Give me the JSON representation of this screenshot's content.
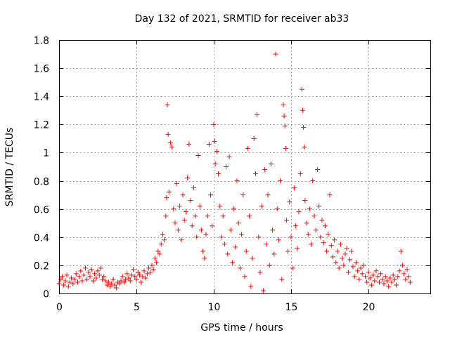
{
  "chart_data": {
    "type": "scatter",
    "title": "Day 132 of 2021, SRMTID for receiver ab33",
    "xlabel": "GPS time / hours",
    "ylabel": "SRMTID / TECUs",
    "xlim": [
      0,
      24
    ],
    "ylim": [
      0,
      1.8
    ],
    "xticks": [
      0,
      5,
      10,
      15,
      20
    ],
    "xtick_labels": [
      "0",
      "5",
      "10",
      "15",
      "20"
    ],
    "yticks": [
      0,
      0.2,
      0.4,
      0.6,
      0.8,
      1,
      1.2,
      1.4,
      1.6,
      1.8
    ],
    "ytick_labels": [
      "0",
      "0.2",
      "0.4",
      "0.6",
      "0.8",
      "1",
      "1.2",
      "1.4",
      "1.6",
      "1.8"
    ],
    "grid": true,
    "marker": "+",
    "series": [
      {
        "name": "ab33",
        "color": "#ff0000",
        "points": [
          [
            0.0,
            0.07
          ],
          [
            0.1,
            0.1
          ],
          [
            0.2,
            0.12
          ],
          [
            0.3,
            0.06
          ],
          [
            0.4,
            0.09
          ],
          [
            0.5,
            0.13
          ],
          [
            0.6,
            0.05
          ],
          [
            0.7,
            0.08
          ],
          [
            0.8,
            0.11
          ],
          [
            0.9,
            0.07
          ],
          [
            1.0,
            0.1
          ],
          [
            1.1,
            0.14
          ],
          [
            1.2,
            0.08
          ],
          [
            1.3,
            0.12
          ],
          [
            1.4,
            0.16
          ],
          [
            1.5,
            0.09
          ],
          [
            1.6,
            0.13
          ],
          [
            1.7,
            0.18
          ],
          [
            1.8,
            0.1
          ],
          [
            1.9,
            0.15
          ],
          [
            2.0,
            0.12
          ],
          [
            2.1,
            0.17
          ],
          [
            2.2,
            0.09
          ],
          [
            2.3,
            0.14
          ],
          [
            2.4,
            0.11
          ],
          [
            2.5,
            0.16
          ],
          [
            2.6,
            0.13
          ],
          [
            2.7,
            0.18
          ],
          [
            2.8,
            0.1
          ],
          [
            2.9,
            0.12
          ],
          [
            3.0,
            0.09
          ],
          [
            3.1,
            0.06
          ],
          [
            3.2,
            0.08
          ],
          [
            3.3,
            0.05
          ],
          [
            3.4,
            0.07
          ],
          [
            3.5,
            0.1
          ],
          [
            3.6,
            0.06
          ],
          [
            3.7,
            0.04
          ],
          [
            3.8,
            0.08
          ],
          [
            3.9,
            0.07
          ],
          [
            4.0,
            0.09
          ],
          [
            4.1,
            0.12
          ],
          [
            4.2,
            0.08
          ],
          [
            4.3,
            0.1
          ],
          [
            4.4,
            0.14
          ],
          [
            4.5,
            0.11
          ],
          [
            4.6,
            0.09
          ],
          [
            4.7,
            0.13
          ],
          [
            4.8,
            0.17
          ],
          [
            4.9,
            0.12
          ],
          [
            5.0,
            0.1
          ],
          [
            5.1,
            0.15
          ],
          [
            5.2,
            0.13
          ],
          [
            5.3,
            0.08
          ],
          [
            5.4,
            0.12
          ],
          [
            5.5,
            0.16
          ],
          [
            5.6,
            0.11
          ],
          [
            5.7,
            0.14
          ],
          [
            5.8,
            0.18
          ],
          [
            5.9,
            0.15
          ],
          [
            6.0,
            0.2
          ],
          [
            6.1,
            0.17
          ],
          [
            6.2,
            0.25
          ],
          [
            6.3,
            0.22
          ],
          [
            6.4,
            0.3
          ],
          [
            6.5,
            0.28
          ],
          [
            6.6,
            0.35
          ],
          [
            6.7,
            0.42
          ],
          [
            6.8,
            0.38
          ],
          [
            6.9,
            0.55
          ],
          [
            6.95,
            0.68
          ],
          [
            7.0,
            1.34
          ],
          [
            7.05,
            1.13
          ],
          [
            7.1,
            0.72
          ],
          [
            7.2,
            1.07
          ],
          [
            7.3,
            1.04
          ],
          [
            7.4,
            0.6
          ],
          [
            7.5,
            0.5
          ],
          [
            7.6,
            0.78
          ],
          [
            7.7,
            0.45
          ],
          [
            7.8,
            0.62
          ],
          [
            7.9,
            0.38
          ],
          [
            8.0,
            0.7
          ],
          [
            8.1,
            0.52
          ],
          [
            8.2,
            0.58
          ],
          [
            8.3,
            0.82
          ],
          [
            8.4,
            1.06
          ],
          [
            8.5,
            0.66
          ],
          [
            8.6,
            0.48
          ],
          [
            8.7,
            0.75
          ],
          [
            8.8,
            0.55
          ],
          [
            8.9,
            0.4
          ],
          [
            9.0,
            0.98
          ],
          [
            9.1,
            0.62
          ],
          [
            9.2,
            0.45
          ],
          [
            9.3,
            0.3
          ],
          [
            9.4,
            0.25
          ],
          [
            9.5,
            0.42
          ],
          [
            9.6,
            0.55
          ],
          [
            9.7,
            1.06
          ],
          [
            9.8,
            0.7
          ],
          [
            9.9,
            0.48
          ],
          [
            10.0,
            1.2
          ],
          [
            10.05,
            1.08
          ],
          [
            10.1,
            0.92
          ],
          [
            10.2,
            1.01
          ],
          [
            10.3,
            0.85
          ],
          [
            10.4,
            0.62
          ],
          [
            10.5,
            0.4
          ],
          [
            10.6,
            0.55
          ],
          [
            10.7,
            0.35
          ],
          [
            10.8,
            0.9
          ],
          [
            10.9,
            0.28
          ],
          [
            11.0,
            0.97
          ],
          [
            11.1,
            0.45
          ],
          [
            11.2,
            0.22
          ],
          [
            11.3,
            0.6
          ],
          [
            11.4,
            0.33
          ],
          [
            11.5,
            0.8
          ],
          [
            11.6,
            0.5
          ],
          [
            11.7,
            0.18
          ],
          [
            11.8,
            0.42
          ],
          [
            11.9,
            0.7
          ],
          [
            12.0,
            0.12
          ],
          [
            12.1,
            0.3
          ],
          [
            12.2,
            1.03
          ],
          [
            12.3,
            0.55
          ],
          [
            12.4,
            0.05
          ],
          [
            12.5,
            0.25
          ],
          [
            12.6,
            1.1
          ],
          [
            12.7,
            0.85
          ],
          [
            12.8,
            1.27
          ],
          [
            12.9,
            0.4
          ],
          [
            13.0,
            0.15
          ],
          [
            13.1,
            0.62
          ],
          [
            13.2,
            0.02
          ],
          [
            13.3,
            0.88
          ],
          [
            13.4,
            0.35
          ],
          [
            13.5,
            0.7
          ],
          [
            13.6,
            0.2
          ],
          [
            13.7,
            0.92
          ],
          [
            13.8,
            0.45
          ],
          [
            13.9,
            0.28
          ],
          [
            14.0,
            1.7
          ],
          [
            14.1,
            0.6
          ],
          [
            14.2,
            0.38
          ],
          [
            14.3,
            0.8
          ],
          [
            14.4,
            0.1
          ],
          [
            14.5,
            1.34
          ],
          [
            14.55,
            1.26
          ],
          [
            14.6,
            1.19
          ],
          [
            14.65,
            1.03
          ],
          [
            14.7,
            0.52
          ],
          [
            14.8,
            0.3
          ],
          [
            14.9,
            0.65
          ],
          [
            15.0,
            0.4
          ],
          [
            15.1,
            0.18
          ],
          [
            15.2,
            0.75
          ],
          [
            15.3,
            0.48
          ],
          [
            15.4,
            0.32
          ],
          [
            15.5,
            0.58
          ],
          [
            15.6,
            0.85
          ],
          [
            15.7,
            1.45
          ],
          [
            15.75,
            1.3
          ],
          [
            15.8,
            1.18
          ],
          [
            15.85,
            1.04
          ],
          [
            15.9,
            0.66
          ],
          [
            16.0,
            0.5
          ],
          [
            16.1,
            0.42
          ],
          [
            16.2,
            0.6
          ],
          [
            16.3,
            0.35
          ],
          [
            16.4,
            0.8
          ],
          [
            16.5,
            0.55
          ],
          [
            16.6,
            0.45
          ],
          [
            16.7,
            0.88
          ],
          [
            16.8,
            0.62
          ],
          [
            16.9,
            0.4
          ],
          [
            17.0,
            0.52
          ],
          [
            17.1,
            0.36
          ],
          [
            17.2,
            0.48
          ],
          [
            17.3,
            0.3
          ],
          [
            17.4,
            0.42
          ],
          [
            17.5,
            0.7
          ],
          [
            17.6,
            0.34
          ],
          [
            17.7,
            0.26
          ],
          [
            17.8,
            0.38
          ],
          [
            17.9,
            0.22
          ],
          [
            18.0,
            0.3
          ],
          [
            18.1,
            0.18
          ],
          [
            18.2,
            0.35
          ],
          [
            18.3,
            0.25
          ],
          [
            18.4,
            0.2
          ],
          [
            18.5,
            0.28
          ],
          [
            18.6,
            0.32
          ],
          [
            18.7,
            0.15
          ],
          [
            18.8,
            0.24
          ],
          [
            18.9,
            0.3
          ],
          [
            19.0,
            0.19
          ],
          [
            19.1,
            0.12
          ],
          [
            19.2,
            0.22
          ],
          [
            19.3,
            0.16
          ],
          [
            19.4,
            0.1
          ],
          [
            19.5,
            0.18
          ],
          [
            19.6,
            0.14
          ],
          [
            19.7,
            0.2
          ],
          [
            19.8,
            0.12
          ],
          [
            19.9,
            0.08
          ],
          [
            20.0,
            0.15
          ],
          [
            20.1,
            0.11
          ],
          [
            20.2,
            0.06
          ],
          [
            20.3,
            0.13
          ],
          [
            20.4,
            0.09
          ],
          [
            20.5,
            0.16
          ],
          [
            20.6,
            0.12
          ],
          [
            20.7,
            0.08
          ],
          [
            20.8,
            0.14
          ],
          [
            20.9,
            0.1
          ],
          [
            21.0,
            0.07
          ],
          [
            21.1,
            0.12
          ],
          [
            21.2,
            0.09
          ],
          [
            21.3,
            0.05
          ],
          [
            21.4,
            0.11
          ],
          [
            21.5,
            0.08
          ],
          [
            21.6,
            0.13
          ],
          [
            21.7,
            0.1
          ],
          [
            21.8,
            0.06
          ],
          [
            21.9,
            0.12
          ],
          [
            22.0,
            0.16
          ],
          [
            22.1,
            0.3
          ],
          [
            22.2,
            0.2
          ],
          [
            22.3,
            0.14
          ],
          [
            22.4,
            0.1
          ],
          [
            22.5,
            0.17
          ],
          [
            22.6,
            0.12
          ],
          [
            22.7,
            0.08
          ]
        ]
      }
    ]
  }
}
